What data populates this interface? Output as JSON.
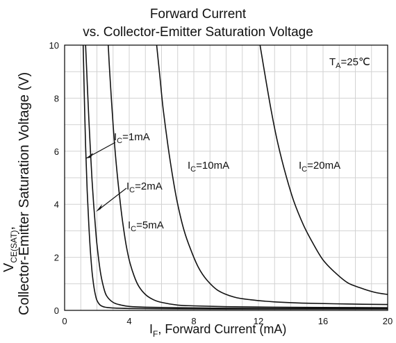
{
  "chart_data": {
    "type": "line",
    "title": "Forward Current",
    "subtitle": "vs. Collector-Emitter Saturation Voltage",
    "xlabel": {
      "symbol": "I",
      "sub": "F",
      "text": ", Forward Current (mA)"
    },
    "ylabel": {
      "symbol": "V",
      "sub": "CE(SAT)",
      "suffix": ",",
      "line2": "Collector-Emitter Saturation Voltage (V)"
    },
    "xlim": [
      0,
      20
    ],
    "ylim": [
      0,
      10
    ],
    "xticks": [
      0,
      4,
      8,
      12,
      16,
      20
    ],
    "yticks": [
      0,
      2,
      4,
      6,
      8,
      10
    ],
    "grid": true,
    "annotation": {
      "symbol": "T",
      "sub": "A",
      "text": "=25℃"
    },
    "series": [
      {
        "name": "I_C=1mA",
        "label_symbol": "I",
        "label_sub": "C",
        "label_text": "=1mA",
        "x": [
          1.15,
          1.2,
          1.3,
          1.4,
          1.5,
          1.6,
          1.7,
          1.8,
          1.9,
          2.0,
          2.2,
          2.5,
          3.0,
          4.0,
          6.0,
          10.0,
          15.0,
          20.0
        ],
        "y": [
          10.0,
          8.6,
          6.2,
          4.5,
          3.2,
          2.2,
          1.45,
          0.95,
          0.6,
          0.38,
          0.2,
          0.12,
          0.09,
          0.07,
          0.06,
          0.05,
          0.05,
          0.05
        ]
      },
      {
        "name": "I_C=2mA",
        "label_symbol": "I",
        "label_sub": "C",
        "label_text": "=2mA",
        "x": [
          1.3,
          1.4,
          1.5,
          1.6,
          1.7,
          1.8,
          1.9,
          2.0,
          2.2,
          2.4,
          2.6,
          3.0,
          3.5,
          4.0,
          5.0,
          7.0,
          10.0,
          15.0,
          20.0
        ],
        "y": [
          10.0,
          8.6,
          7.2,
          6.0,
          4.9,
          4.0,
          3.2,
          2.5,
          1.5,
          0.9,
          0.55,
          0.3,
          0.2,
          0.15,
          0.12,
          0.1,
          0.08,
          0.07,
          0.07
        ]
      },
      {
        "name": "I_C=5mA",
        "label_symbol": "I",
        "label_sub": "C",
        "label_text": "=5mA",
        "x": [
          2.7,
          2.8,
          3.0,
          3.2,
          3.4,
          3.6,
          3.8,
          4.0,
          4.3,
          4.6,
          5.0,
          5.5,
          6.0,
          7.0,
          8.0,
          10.0,
          13.0,
          16.0,
          20.0
        ],
        "y": [
          10.0,
          8.9,
          7.0,
          5.5,
          4.3,
          3.3,
          2.5,
          1.9,
          1.3,
          0.9,
          0.6,
          0.4,
          0.3,
          0.2,
          0.17,
          0.14,
          0.12,
          0.11,
          0.1
        ]
      },
      {
        "name": "I_C=10mA",
        "label_symbol": "I",
        "label_sub": "C",
        "label_text": "=10mA",
        "x": [
          5.7,
          5.9,
          6.1,
          6.4,
          6.7,
          7.0,
          7.4,
          7.8,
          8.3,
          8.8,
          9.5,
          10.5,
          11.5,
          13.0,
          15.0,
          17.5,
          20.0
        ],
        "y": [
          10.0,
          8.8,
          7.6,
          6.2,
          5.0,
          4.0,
          3.0,
          2.3,
          1.6,
          1.15,
          0.75,
          0.5,
          0.4,
          0.32,
          0.27,
          0.24,
          0.22
        ]
      },
      {
        "name": "I_C=20mA",
        "label_symbol": "I",
        "label_sub": "C",
        "label_text": "=20mA",
        "x": [
          12.1,
          12.4,
          12.8,
          13.2,
          13.7,
          14.2,
          14.8,
          15.4,
          16.0,
          16.7,
          17.5,
          18.3,
          19.2,
          20.0
        ],
        "y": [
          10.0,
          8.9,
          7.5,
          6.3,
          5.1,
          4.1,
          3.2,
          2.5,
          1.9,
          1.45,
          1.05,
          0.85,
          0.68,
          0.6
        ]
      }
    ]
  }
}
